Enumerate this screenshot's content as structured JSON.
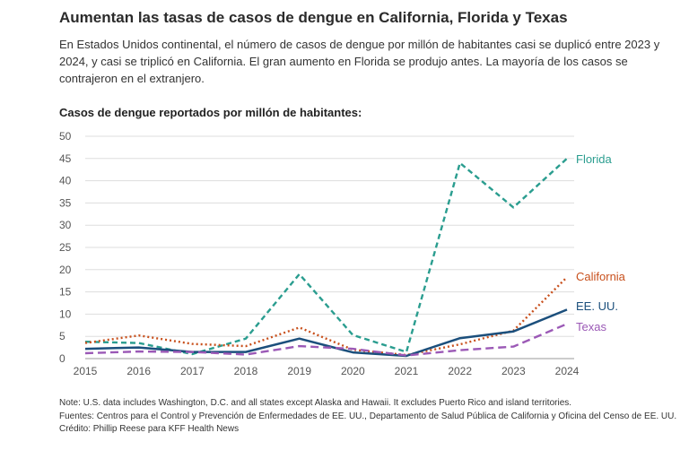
{
  "header": {
    "title": "Aumentan las tasas de casos de dengue en California, Florida y Texas",
    "subtitle": "En Estados Unidos continental, el número de casos de dengue por millón de habitantes casi se duplicó entre 2023 y 2024, y casi se triplicó en California. El gran aumento en Florida se produjo antes. La mayoría de los casos se contrajeron en el extranjero."
  },
  "chart_data": {
    "type": "line",
    "title": "Casos de dengue reportados por millón de habitantes:",
    "xlabel": "",
    "ylabel": "",
    "x": [
      2015,
      2016,
      2017,
      2018,
      2019,
      2020,
      2021,
      2022,
      2023,
      2024
    ],
    "ylim": [
      0,
      50
    ],
    "yticks": [
      0,
      5,
      10,
      15,
      20,
      25,
      30,
      35,
      40,
      45,
      50
    ],
    "grid": true,
    "legend": "direct labels at line ends",
    "series": [
      {
        "name": "Florida",
        "color": "#2a9d8f",
        "dash": "dashed",
        "values": [
          3.8,
          3.5,
          1.0,
          4.5,
          19.0,
          5.3,
          1.5,
          44.0,
          34.0,
          45.0
        ]
      },
      {
        "name": "California",
        "color": "#c8501c",
        "dash": "dotted",
        "values": [
          3.5,
          5.2,
          3.3,
          2.8,
          7.0,
          2.0,
          0.8,
          3.2,
          6.3,
          18.3
        ]
      },
      {
        "name": "EE. UU.",
        "color": "#1b4f7c",
        "dash": "solid",
        "values": [
          2.2,
          2.5,
          1.5,
          1.5,
          4.5,
          1.4,
          0.6,
          4.6,
          6.1,
          11.0
        ]
      },
      {
        "name": "Texas",
        "color": "#9b59b6",
        "dash": "long-dash",
        "values": [
          1.2,
          1.6,
          1.5,
          0.9,
          2.8,
          2.2,
          0.7,
          1.9,
          2.7,
          7.8
        ]
      }
    ]
  },
  "footer": {
    "note": "Note: U.S. data includes Washington, D.C. and all states except Alaska and Hawaii. It excludes Puerto Rico and island territories.",
    "sources": "Fuentes: Centros para el Control y Prevención de Enfermedades de EE. UU., Departamento de Salud Pública de California y Oficina del Censo de EE. UU.",
    "credit": "Crédito: Phillip Reese para KFF Health News"
  }
}
